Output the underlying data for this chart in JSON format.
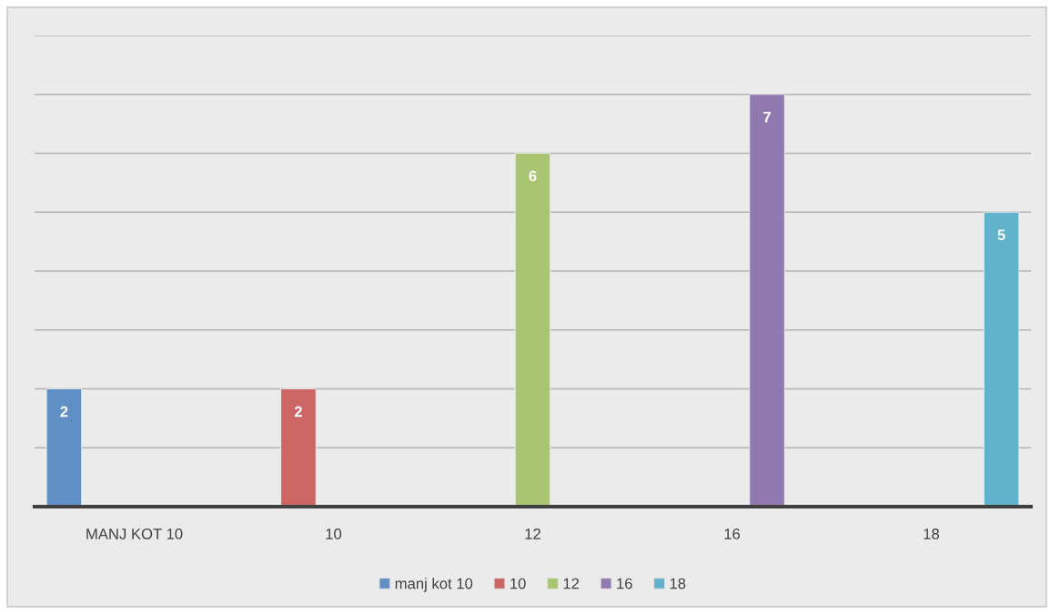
{
  "chart_data": {
    "type": "bar",
    "categories": [
      "MANJ KOT 10",
      "10",
      "12",
      "16",
      "18"
    ],
    "series": [
      {
        "name": "manj kot 10",
        "color": "#5f8fc5",
        "values": [
          2,
          null,
          null,
          null,
          null
        ]
      },
      {
        "name": "10",
        "color": "#cb6664",
        "values": [
          null,
          2,
          null,
          null,
          null
        ]
      },
      {
        "name": "12",
        "color": "#a9c571",
        "values": [
          null,
          null,
          6,
          null,
          null
        ]
      },
      {
        "name": "16",
        "color": "#9079ae",
        "values": [
          null,
          null,
          null,
          7,
          null
        ]
      },
      {
        "name": "18",
        "color": "#60b3ca",
        "values": [
          null,
          null,
          null,
          null,
          5
        ]
      }
    ],
    "ylim": [
      0,
      8
    ],
    "yticks": [
      {
        "value": 0,
        "label": null
      },
      {
        "value": 1,
        "label": null
      },
      {
        "value": 2,
        "label": null
      },
      {
        "value": 3,
        "label": null
      },
      {
        "value": 4,
        "label": null
      },
      {
        "value": 5,
        "label": null
      },
      {
        "value": 6,
        "label": null
      },
      {
        "value": 7,
        "label": null
      },
      {
        "value": 8,
        "label": null
      }
    ],
    "tick_labels": "x",
    "grid": "y",
    "legend": "bottom",
    "data_labels": true
  }
}
